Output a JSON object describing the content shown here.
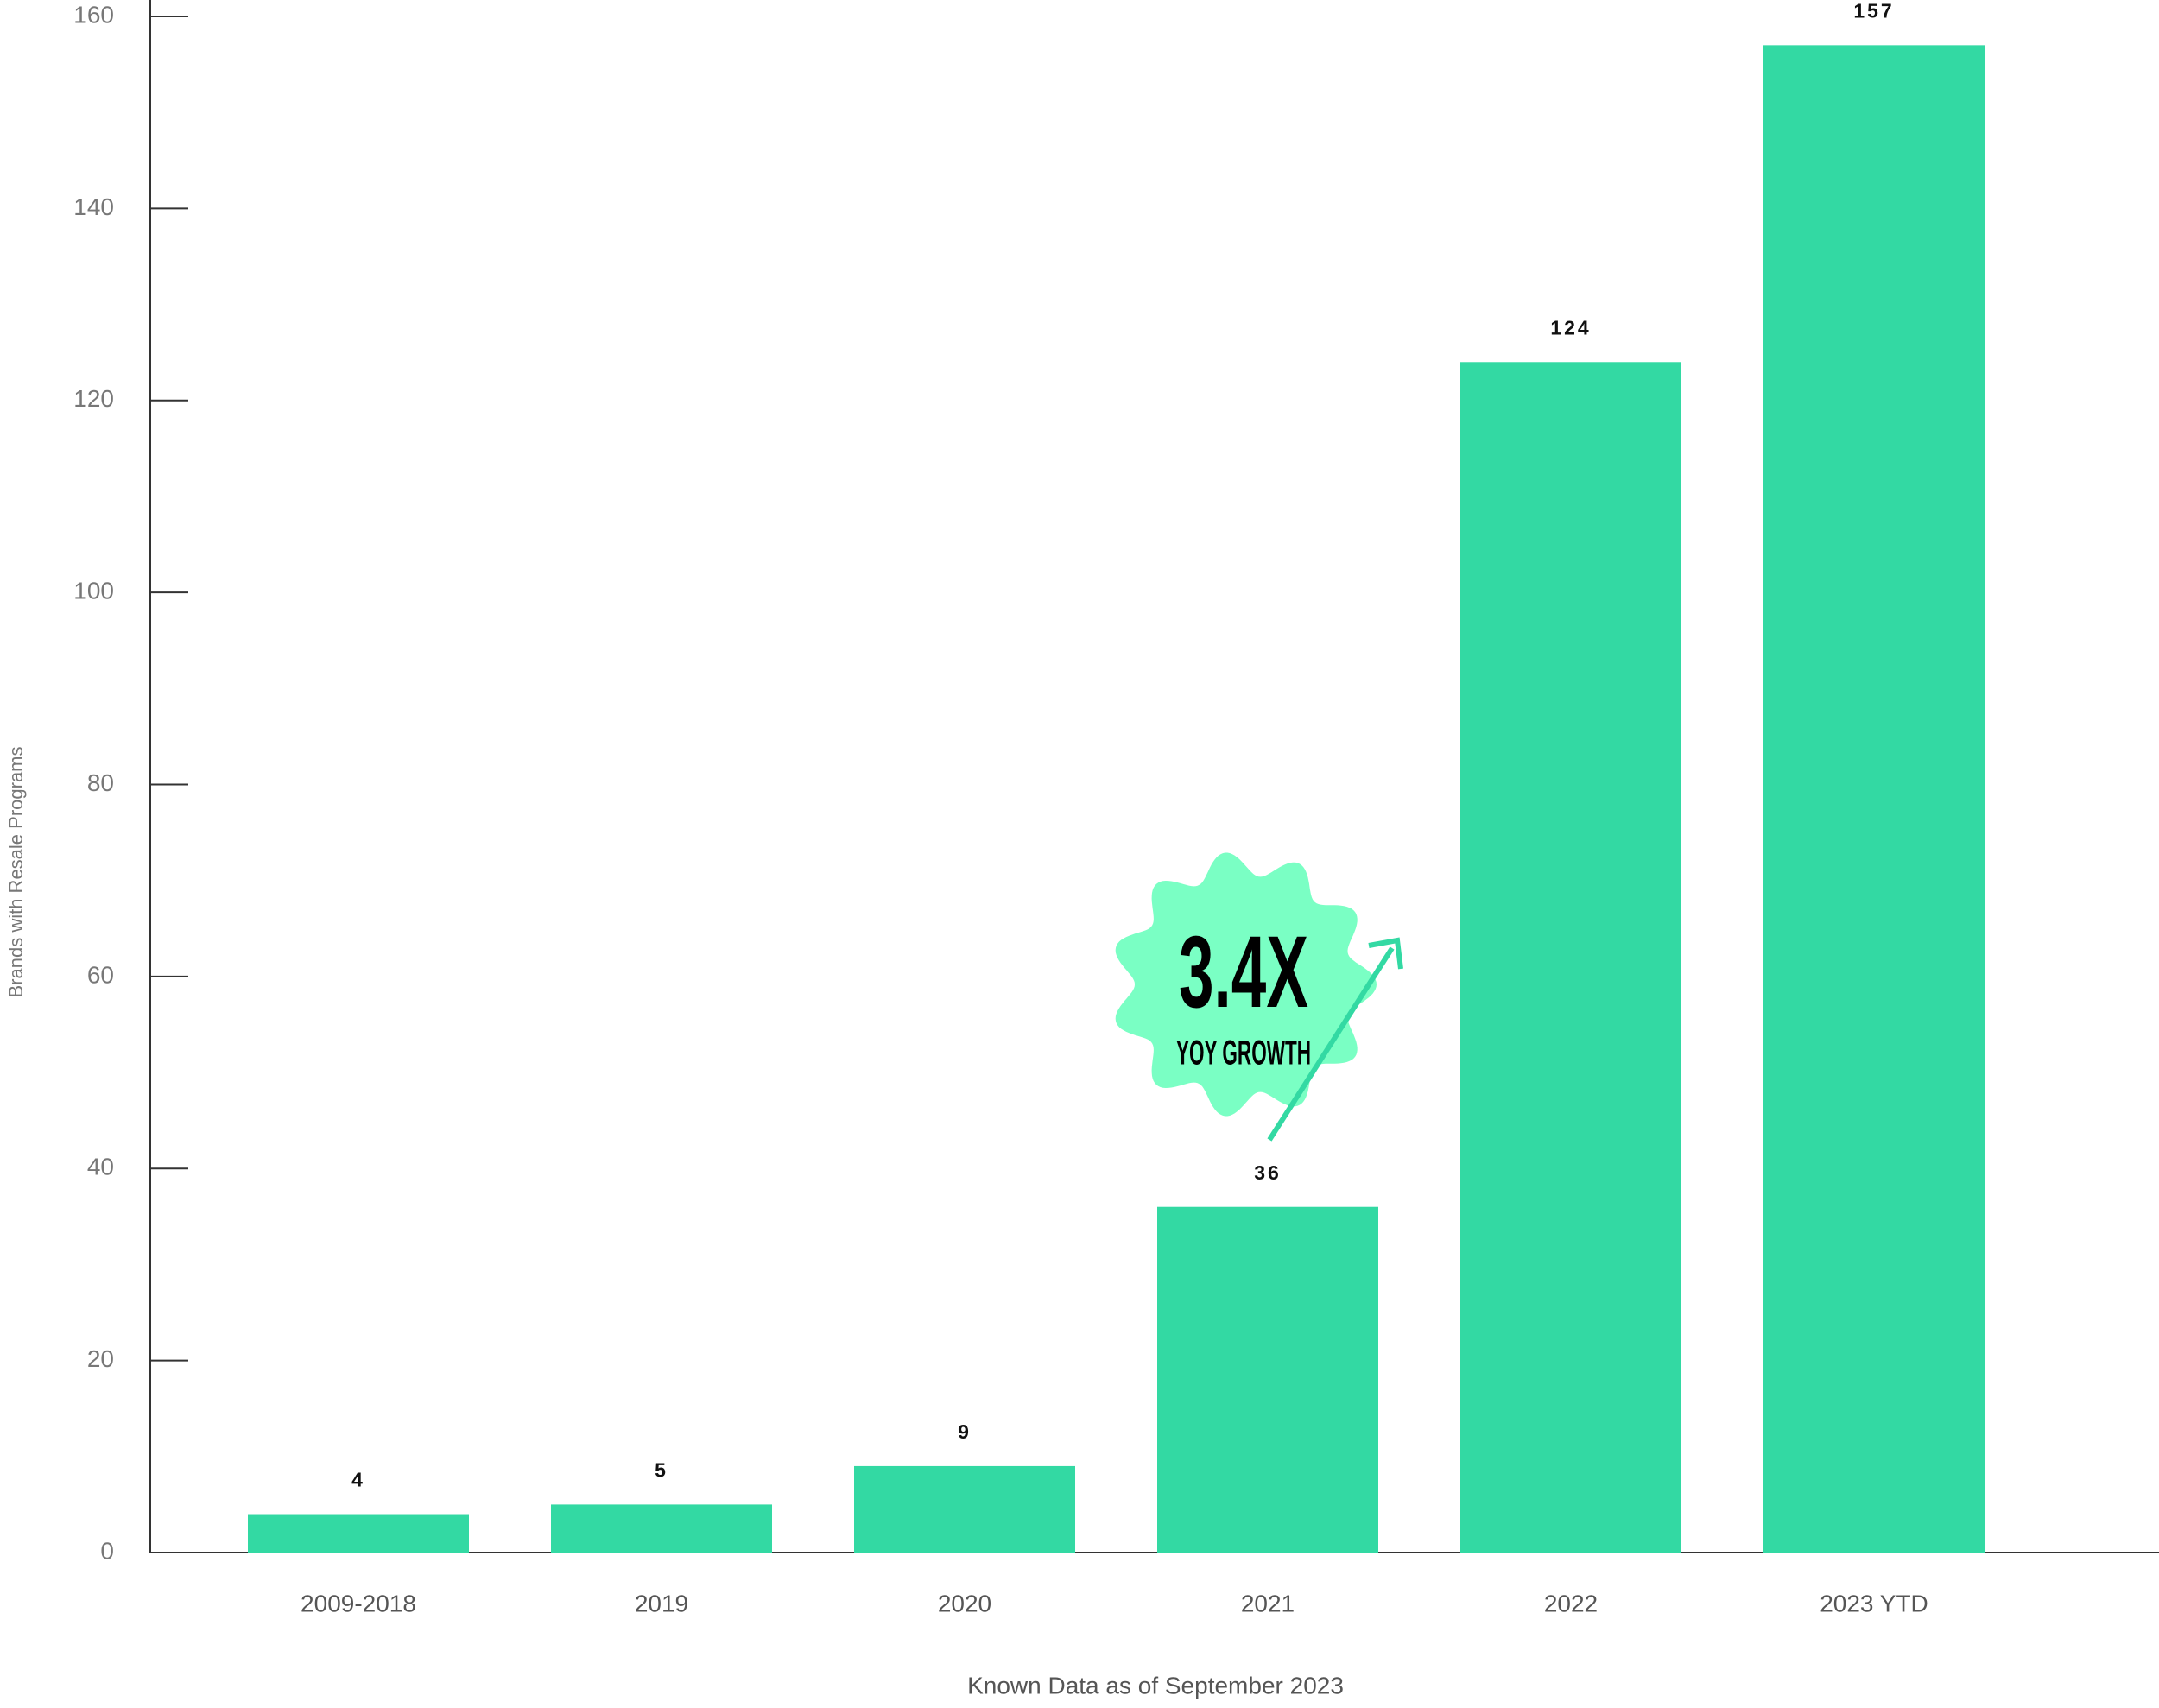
{
  "chart_data": {
    "type": "bar",
    "categories": [
      "2009-2018",
      "2019",
      "2020",
      "2021",
      "2022",
      "2023 YTD"
    ],
    "values": [
      4,
      5,
      9,
      36,
      124,
      157
    ],
    "color": "#33d9a3",
    "ylim": [
      0,
      160
    ],
    "yticks": [
      0,
      20,
      40,
      60,
      80,
      100,
      120,
      140,
      160
    ],
    "y_label": "Brands with Resale Programs",
    "x_label": "Known Data as of September 2023",
    "annotation": {
      "headline": "3.4X",
      "subtext": "YOY GROWTH"
    }
  }
}
